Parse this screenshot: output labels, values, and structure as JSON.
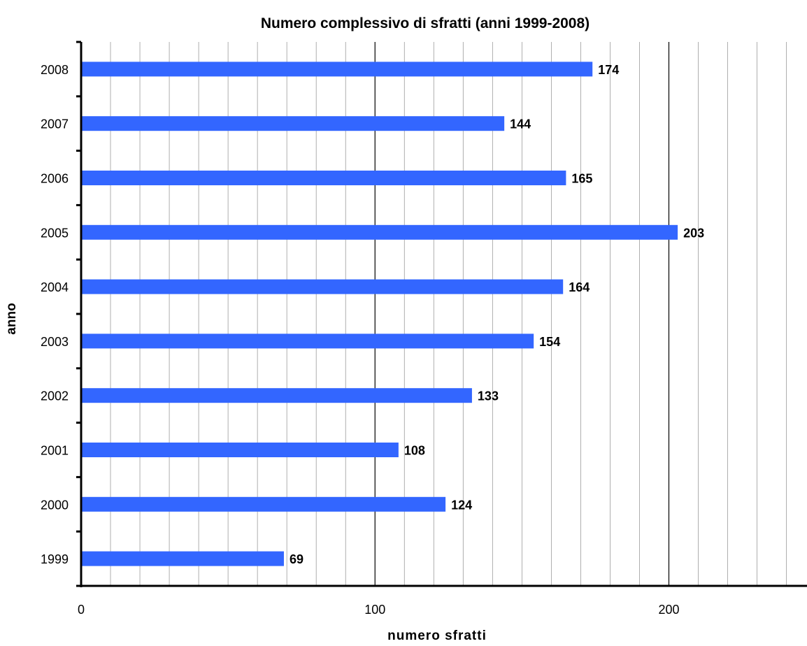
{
  "chart_data": {
    "type": "bar",
    "orientation": "horizontal",
    "title": "Numero complessivo di sfratti (anni 1999-2008)",
    "xlabel": "numero sfratti",
    "ylabel": "anno",
    "categories": [
      "1999",
      "2000",
      "2001",
      "2002",
      "2003",
      "2004",
      "2005",
      "2006",
      "2007",
      "2008"
    ],
    "values": [
      69,
      124,
      108,
      133,
      154,
      164,
      203,
      165,
      144,
      174
    ],
    "xlim": [
      0,
      247
    ],
    "xticks": [
      0,
      100,
      200
    ],
    "minor_gridline_step": 10,
    "grid": true,
    "legend": "none",
    "colors": {
      "bar": "#3366ff",
      "major_grid": "#000000",
      "minor_grid": "#9a9a9a",
      "axis": "#000000"
    }
  }
}
